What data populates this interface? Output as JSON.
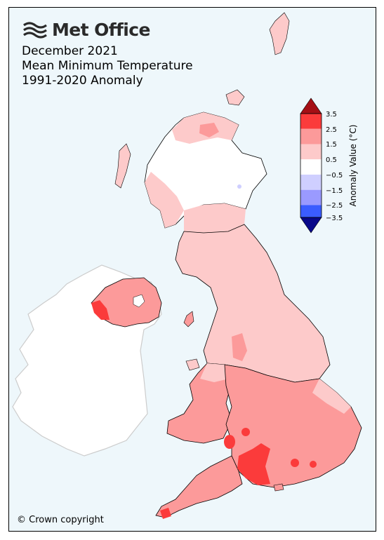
{
  "brand": {
    "name": "Met Office",
    "logo_icon": "met-office-wave-logo-icon"
  },
  "title": {
    "line1": "December 2021",
    "line2": "Mean Minimum Temperature",
    "line3": "1991-2020 Anomaly"
  },
  "copyright": "© Crown copyright",
  "colorbar": {
    "label": "Anomaly Value (°C)",
    "ticks": [
      "3.5",
      "2.5",
      "1.5",
      "0.5",
      "−0.5",
      "−1.5",
      "−2.5",
      "−3.5"
    ],
    "bins": [
      {
        "range": "above 3.5",
        "color": "#a50f15"
      },
      {
        "range": "2.5 to 3.5",
        "color": "#fb3b3b"
      },
      {
        "range": "1.5 to 2.5",
        "color": "#fc9a9a"
      },
      {
        "range": "0.5 to 1.5",
        "color": "#fdcaca"
      },
      {
        "range": "-0.5 to 0.5",
        "color": "#ffffff"
      },
      {
        "range": "-1.5 to -0.5",
        "color": "#cfcfff"
      },
      {
        "range": "-2.5 to -1.5",
        "color": "#9a9aff"
      },
      {
        "range": "-3.5 to -2.5",
        "color": "#3a5cff"
      },
      {
        "range": "below -3.5",
        "color": "#08088a"
      }
    ]
  },
  "colors": {
    "ocean": "#eef7fb",
    "ireland": "#ffffff",
    "border": "#000000",
    "ireland_border": "#cccccc"
  }
}
